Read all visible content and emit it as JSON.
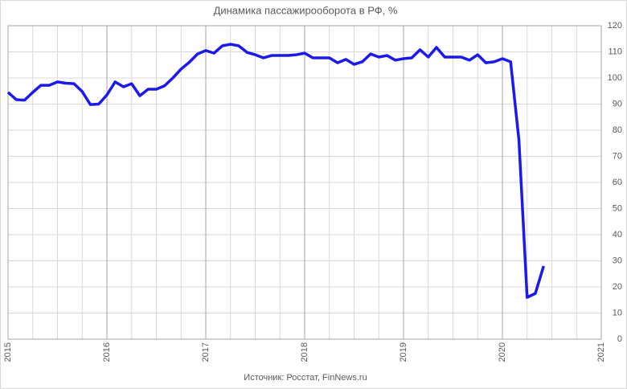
{
  "chart_data": {
    "type": "line",
    "title": "Динамика пассажирооборота в РФ, %",
    "source": "Источник: Росстат, FinNews.ru",
    "x": [
      2015.0,
      2015.083,
      2015.167,
      2015.25,
      2015.333,
      2015.417,
      2015.5,
      2015.583,
      2015.667,
      2015.75,
      2015.833,
      2015.917,
      2016.0,
      2016.083,
      2016.167,
      2016.25,
      2016.333,
      2016.417,
      2016.5,
      2016.583,
      2016.667,
      2016.75,
      2016.833,
      2016.917,
      2017.0,
      2017.083,
      2017.167,
      2017.25,
      2017.333,
      2017.417,
      2017.5,
      2017.583,
      2017.667,
      2017.75,
      2017.833,
      2017.917,
      2018.0,
      2018.083,
      2018.167,
      2018.25,
      2018.333,
      2018.417,
      2018.5,
      2018.583,
      2018.667,
      2018.75,
      2018.833,
      2018.917,
      2019.0,
      2019.083,
      2019.167,
      2019.25,
      2019.333,
      2019.417,
      2019.5,
      2019.583,
      2019.667,
      2019.75,
      2019.833,
      2019.917,
      2020.0,
      2020.083,
      2020.167,
      2020.25,
      2020.333,
      2020.417
    ],
    "series": [
      {
        "color": "#1a1aee",
        "values": [
          94.5,
          91.7,
          91.5,
          94.5,
          97.2,
          97.2,
          98.5,
          98,
          97.8,
          94.8,
          89.8,
          90,
          93.5,
          98.5,
          96.6,
          97.8,
          93.2,
          95.7,
          95.7,
          97,
          100,
          103.4,
          106,
          109.2,
          110.5,
          109.5,
          112.3,
          112.9,
          112.3,
          109.8,
          108.9,
          107.7,
          108.6,
          108.6,
          108.6,
          108.9,
          109.5,
          107.7,
          107.7,
          107.7,
          105.8,
          107.1,
          105.2,
          106.2,
          109.2,
          108,
          108.6,
          106.8,
          107.4,
          107.7,
          110.8,
          108,
          111.7,
          108,
          108,
          108,
          106.8,
          108.9,
          105.8,
          106.2,
          107.4,
          106.2,
          76.3,
          16,
          17.5,
          28
        ]
      }
    ],
    "xlim": [
      2015,
      2021
    ],
    "xticks": [
      2015,
      2016,
      2017,
      2018,
      2019,
      2020,
      2021
    ],
    "ylim": [
      0,
      120
    ],
    "yticks": [
      0,
      10,
      20,
      30,
      40,
      50,
      60,
      70,
      80,
      90,
      100,
      110,
      120
    ],
    "grid": true
  }
}
